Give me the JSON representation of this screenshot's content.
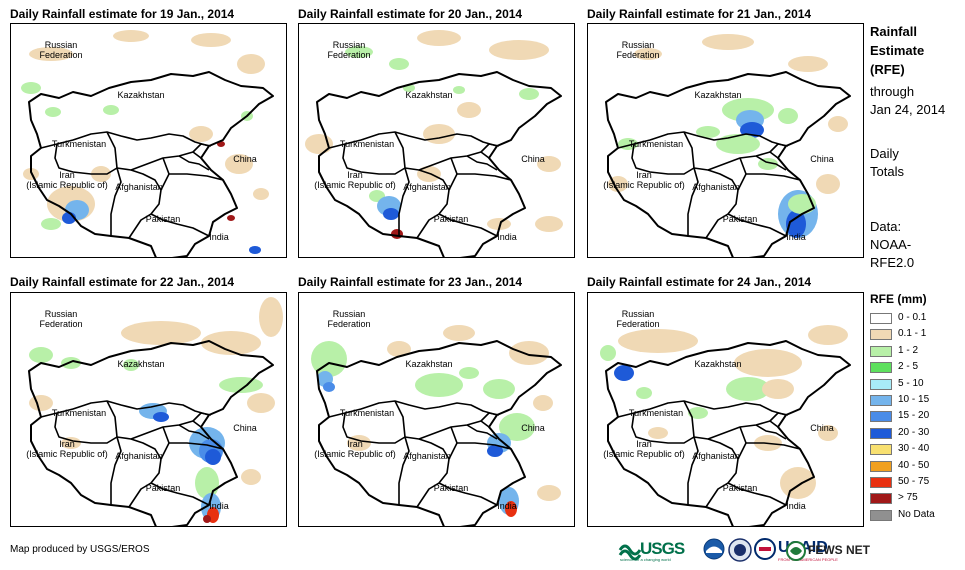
{
  "panels": [
    {
      "title": "Daily Rainfall estimate for 19 Jan., 2014",
      "day": 19
    },
    {
      "title": "Daily Rainfall estimate for 20 Jan., 2014",
      "day": 20
    },
    {
      "title": "Daily Rainfall estimate for 21 Jan., 2014",
      "day": 21
    },
    {
      "title": "Daily Rainfall estimate for 22 Jan., 2014",
      "day": 22
    },
    {
      "title": "Daily Rainfall estimate for 23 Jan., 2014",
      "day": 23
    },
    {
      "title": "Daily Rainfall estimate for 24 Jan., 2014",
      "day": 24
    }
  ],
  "countries": {
    "russia": "Russian\nFederation",
    "kazakhstan": "Kazakhstan",
    "turkmenistan": "Turkmenistan",
    "iran": "Iran\n(Islamic Republic of)",
    "afghanistan": "Afghanistan",
    "pakistan": "Pakistan",
    "china": "China",
    "india": "India"
  },
  "side": {
    "title_line1": "Rainfall",
    "title_line2": "Estimate",
    "title_line3": "(RFE)",
    "through": "through",
    "date": "Jan 24, 2014",
    "daily1": "Daily",
    "daily2": "Totals",
    "data1": "Data:",
    "data2": "NOAA-",
    "data3": "RFE2.0"
  },
  "legend": {
    "title": "RFE (mm)",
    "items": [
      {
        "label": "0 - 0.1",
        "color": "#ffffff"
      },
      {
        "label": "0.1 - 1",
        "color": "#f0d9b5"
      },
      {
        "label": "1 - 2",
        "color": "#b8f0a8"
      },
      {
        "label": "2 - 5",
        "color": "#5ee05e"
      },
      {
        "label": "5 - 10",
        "color": "#a8ecf8"
      },
      {
        "label": "10 - 15",
        "color": "#74b4ec"
      },
      {
        "label": "15 - 20",
        "color": "#4a8ce8"
      },
      {
        "label": "20 - 30",
        "color": "#1e5ad8"
      },
      {
        "label": "30 - 40",
        "color": "#f8e070"
      },
      {
        "label": "40 - 50",
        "color": "#f0a020"
      },
      {
        "label": "50 - 75",
        "color": "#e83010"
      },
      {
        "label": "> 75",
        "color": "#a01818"
      },
      {
        "label": "No Data",
        "color": "#909090"
      }
    ]
  },
  "credit": "Map produced by USGS/EROS",
  "logos": {
    "usgs": "USGS",
    "usgs_tag": "science for a changing world",
    "usaid": "USAID",
    "usaid_tag": "FROM THE AMERICAN PEOPLE",
    "fews": "FEWS NET"
  }
}
